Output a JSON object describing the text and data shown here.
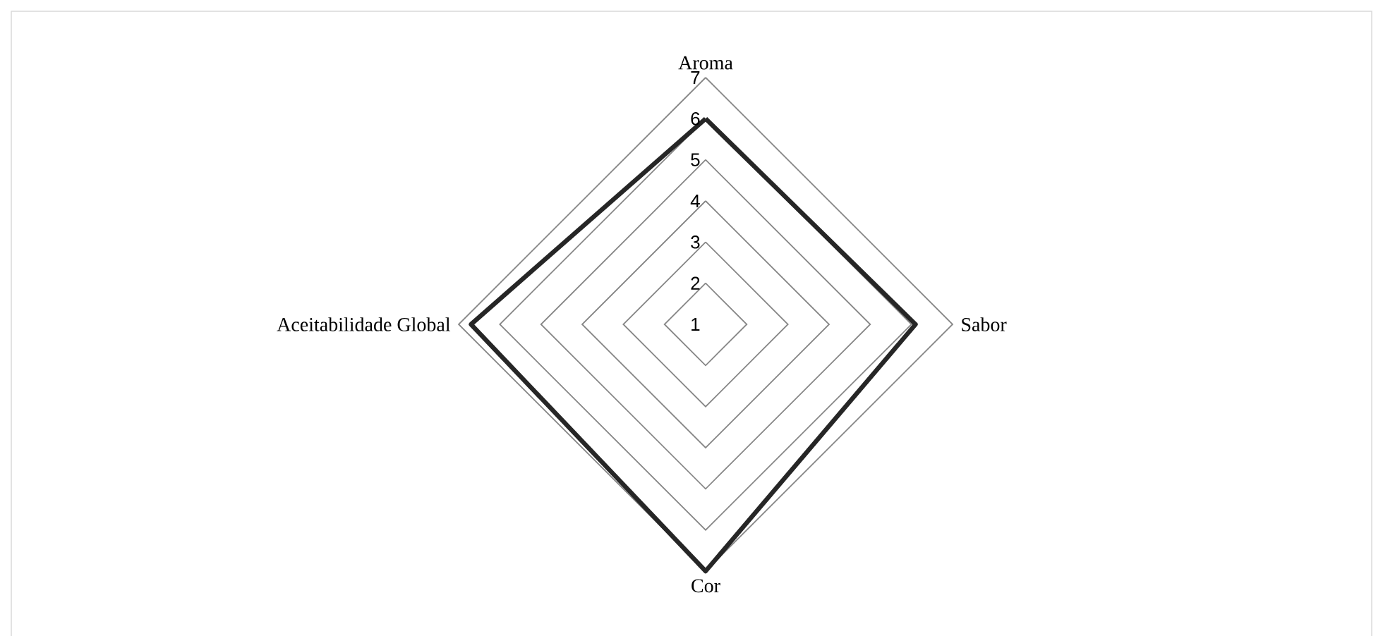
{
  "chart_data": {
    "type": "radar",
    "categories": [
      "Aroma",
      "Sabor",
      "Cor",
      "Aceitabilidade Global"
    ],
    "series": [
      {
        "color": "#262626",
        "values": [
          6.0,
          6.1,
          7.0,
          6.7
        ]
      }
    ],
    "ylim": [
      1,
      7
    ],
    "yticks": [
      1,
      2,
      3,
      4,
      5,
      6,
      7
    ],
    "grid": true
  }
}
